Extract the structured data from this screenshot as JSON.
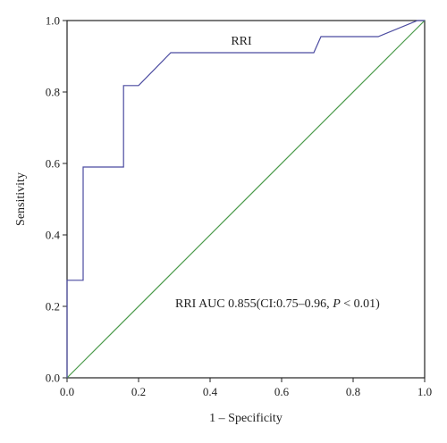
{
  "chart_data": {
    "type": "line",
    "xlabel": "1 – Specificity",
    "ylabel": "Sensitivity",
    "xlim": [
      0,
      1
    ],
    "ylim": [
      0,
      1
    ],
    "x_ticks": [
      "0.0",
      "0.2",
      "0.4",
      "0.6",
      "0.8",
      "1.0"
    ],
    "y_ticks": [
      "0.0",
      "0.2",
      "0.4",
      "0.6",
      "0.8",
      "1.0"
    ],
    "grid": false,
    "series": [
      {
        "name": "RRI",
        "color": "#4b4ba0",
        "points": [
          [
            0.0,
            0.0
          ],
          [
            0.0,
            0.273
          ],
          [
            0.045,
            0.273
          ],
          [
            0.045,
            0.59
          ],
          [
            0.158,
            0.59
          ],
          [
            0.158,
            0.818
          ],
          [
            0.2,
            0.818
          ],
          [
            0.29,
            0.91
          ],
          [
            0.69,
            0.91
          ],
          [
            0.71,
            0.955
          ],
          [
            0.87,
            0.955
          ],
          [
            0.98,
            1.0
          ],
          [
            1.0,
            1.0
          ]
        ]
      },
      {
        "name": "",
        "color": "#4a9a4a",
        "points": [
          [
            0.0,
            0.0
          ],
          [
            1.0,
            1.0
          ]
        ]
      }
    ],
    "annotations": {
      "series_label": "RRI",
      "auc_prefix": "RRI AUC 0.855(CI:0.75–0.96, ",
      "auc_p": "P",
      "auc_suffix": " < 0.01)"
    }
  }
}
